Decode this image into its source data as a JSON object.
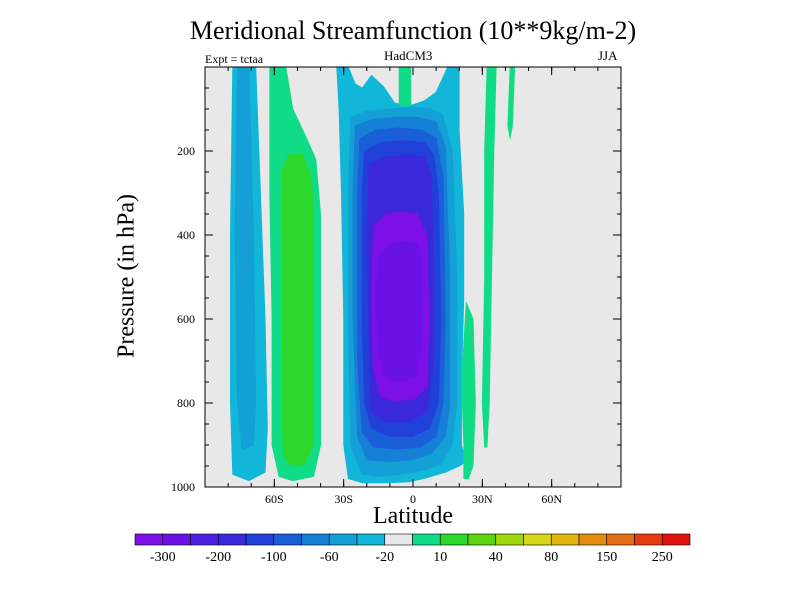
{
  "chart_data": {
    "type": "heatmap",
    "title": "Meridional Streamfunction (10**9kg/m-2)",
    "subtitle_left": "Expt = tctaa",
    "subtitle_center": "HadCM3",
    "subtitle_right": "JJA",
    "xlabel": "Latitude",
    "ylabel": "Pressure (in hPa)",
    "xlim": [
      -90,
      90
    ],
    "ylim": [
      1000,
      0
    ],
    "x_ticks": [
      {
        "value": -60,
        "label": "60S"
      },
      {
        "value": -30,
        "label": "30S"
      },
      {
        "value": 0,
        "label": "0"
      },
      {
        "value": 30,
        "label": "30N"
      },
      {
        "value": 60,
        "label": "60N"
      }
    ],
    "y_ticks": [
      {
        "value": 200,
        "label": "200"
      },
      {
        "value": 400,
        "label": "400"
      },
      {
        "value": 600,
        "label": "600"
      },
      {
        "value": 800,
        "label": "800"
      },
      {
        "value": 1000,
        "label": "1000"
      }
    ],
    "background_color": "#e8e8e8",
    "colorbar": {
      "colors": [
        "#7c10e6",
        "#6a12e6",
        "#4f1ee0",
        "#3a28da",
        "#2040d8",
        "#1a5ed8",
        "#1680d6",
        "#14a0d6",
        "#12b6d8",
        "#e8e8e8",
        "#10dc88",
        "#2cd82c",
        "#5cd410",
        "#a0d810",
        "#d8d418",
        "#e4b410",
        "#e48c10",
        "#e46c14",
        "#e43c10",
        "#e01010"
      ],
      "labels": [
        "-300",
        "-200",
        "-100",
        "-60",
        "-20",
        "10",
        "40",
        "80",
        "150",
        "250"
      ]
    },
    "contours": [
      {
        "name": "sh_neg_outer",
        "level": "-20 to 10",
        "color": "#12b6d8",
        "points": [
          [
            -78,
            0
          ],
          [
            -68,
            0
          ],
          [
            -66,
            300
          ],
          [
            -64,
            600
          ],
          [
            -63,
            860
          ],
          [
            -64,
            965
          ],
          [
            -71,
            985
          ],
          [
            -78,
            970
          ],
          [
            -79,
            800
          ],
          [
            -79,
            400
          ]
        ]
      },
      {
        "name": "sh_neg_inner",
        "level": "-60 to -20",
        "color": "#14a0d6",
        "points": [
          [
            -76,
            0
          ],
          [
            -71,
            0
          ],
          [
            -69,
            400
          ],
          [
            -68,
            800
          ],
          [
            -69,
            900
          ],
          [
            -74,
            910
          ],
          [
            -76,
            800
          ],
          [
            -77,
            400
          ]
        ]
      },
      {
        "name": "sh_pos_outer",
        "level": "10 to 40",
        "color": "#10dc88",
        "points": [
          [
            -62,
            0
          ],
          [
            -55,
            0
          ],
          [
            -52,
            100
          ],
          [
            -46,
            170
          ],
          [
            -42,
            220
          ],
          [
            -40,
            350
          ],
          [
            -40,
            900
          ],
          [
            -43,
            975
          ],
          [
            -52,
            985
          ],
          [
            -58,
            975
          ],
          [
            -61,
            900
          ],
          [
            -61,
            600
          ],
          [
            -62,
            300
          ]
        ]
      },
      {
        "name": "sh_pos_inner",
        "level": "40 to 80",
        "color": "#2cd82c",
        "points": [
          [
            -57,
            250
          ],
          [
            -54,
            210
          ],
          [
            -48,
            205
          ],
          [
            -44,
            260
          ],
          [
            -43,
            350
          ],
          [
            -43,
            900
          ],
          [
            -47,
            945
          ],
          [
            -52,
            950
          ],
          [
            -56,
            930
          ],
          [
            -57,
            800
          ],
          [
            -57,
            500
          ]
        ]
      },
      {
        "name": "nh_neg_outer",
        "level": "-20 to 10",
        "color": "#12b6d8",
        "points": [
          [
            -33,
            0
          ],
          [
            -28,
            0
          ],
          [
            -25,
            40
          ],
          [
            -22,
            50
          ],
          [
            -18,
            20
          ],
          [
            -13,
            45
          ],
          [
            -8,
            85
          ],
          [
            -5,
            90
          ],
          [
            0,
            90
          ],
          [
            5,
            80
          ],
          [
            10,
            60
          ],
          [
            15,
            0
          ],
          [
            20,
            0
          ],
          [
            20,
            150
          ],
          [
            22,
            350
          ],
          [
            22,
            550
          ],
          [
            21,
            750
          ],
          [
            21,
            900
          ],
          [
            23,
            940
          ],
          [
            20,
            950
          ],
          [
            14,
            965
          ],
          [
            6,
            978
          ],
          [
            -2,
            988
          ],
          [
            -12,
            990
          ],
          [
            -22,
            990
          ],
          [
            -28,
            980
          ],
          [
            -30,
            900
          ],
          [
            -30,
            600
          ],
          [
            -31,
            300
          ],
          [
            -32,
            100
          ]
        ]
      },
      {
        "name": "nh_neg_l2",
        "level": "-60 to -20",
        "color": "#14a0d6",
        "points": [
          [
            -27,
            120
          ],
          [
            -20,
            105
          ],
          [
            -10,
            100
          ],
          [
            0,
            95
          ],
          [
            8,
            100
          ],
          [
            13,
            115
          ],
          [
            17,
            200
          ],
          [
            19,
            500
          ],
          [
            19,
            800
          ],
          [
            17,
            900
          ],
          [
            12,
            945
          ],
          [
            5,
            960
          ],
          [
            -5,
            970
          ],
          [
            -15,
            975
          ],
          [
            -22,
            970
          ],
          [
            -27,
            900
          ],
          [
            -28,
            600
          ],
          [
            -28,
            300
          ]
        ]
      },
      {
        "name": "nh_neg_l3",
        "level": "-100 to -60",
        "color": "#1680d6",
        "points": [
          [
            -25,
            140
          ],
          [
            -18,
            125
          ],
          [
            -8,
            120
          ],
          [
            2,
            120
          ],
          [
            10,
            130
          ],
          [
            14,
            190
          ],
          [
            16,
            500
          ],
          [
            16,
            800
          ],
          [
            14,
            880
          ],
          [
            8,
            920
          ],
          [
            0,
            935
          ],
          [
            -10,
            940
          ],
          [
            -20,
            935
          ],
          [
            -24,
            880
          ],
          [
            -26,
            600
          ],
          [
            -26,
            300
          ]
        ]
      },
      {
        "name": "nh_neg_l4",
        "level": "-200 to -100",
        "color": "#1a5ed8",
        "points": [
          [
            -23,
            170
          ],
          [
            -16,
            150
          ],
          [
            -6,
            145
          ],
          [
            4,
            150
          ],
          [
            10,
            170
          ],
          [
            13,
            260
          ],
          [
            14,
            600
          ],
          [
            13,
            800
          ],
          [
            10,
            880
          ],
          [
            3,
            905
          ],
          [
            -7,
            910
          ],
          [
            -17,
            905
          ],
          [
            -22,
            870
          ],
          [
            -24,
            700
          ],
          [
            -24,
            300
          ]
        ]
      },
      {
        "name": "nh_neg_l5",
        "level": "-300 to -200",
        "color": "#2040d8",
        "points": [
          [
            -21,
            200
          ],
          [
            -14,
            180
          ],
          [
            -4,
            175
          ],
          [
            5,
            180
          ],
          [
            9,
            210
          ],
          [
            11,
            300
          ],
          [
            12,
            600
          ],
          [
            11,
            800
          ],
          [
            7,
            860
          ],
          [
            0,
            880
          ],
          [
            -10,
            880
          ],
          [
            -18,
            860
          ],
          [
            -21,
            800
          ],
          [
            -22,
            600
          ],
          [
            -22,
            300
          ]
        ]
      },
      {
        "name": "nh_neg_l6",
        "level": "-300 to -200",
        "color": "#3a28da",
        "points": [
          [
            -19,
            230
          ],
          [
            -12,
            215
          ],
          [
            -3,
            210
          ],
          [
            5,
            215
          ],
          [
            8,
            260
          ],
          [
            9,
            500
          ],
          [
            9,
            700
          ],
          [
            6,
            820
          ],
          [
            -2,
            845
          ],
          [
            -12,
            845
          ],
          [
            -18,
            820
          ],
          [
            -19,
            700
          ],
          [
            -20,
            400
          ]
        ]
      },
      {
        "name": "nh_neg_core",
        "level": "< -300",
        "color": "#7c10e6",
        "points": [
          [
            -17,
            380
          ],
          [
            -12,
            350
          ],
          [
            -5,
            345
          ],
          [
            2,
            350
          ],
          [
            6,
            400
          ],
          [
            7,
            600
          ],
          [
            6,
            760
          ],
          [
            1,
            790
          ],
          [
            -8,
            795
          ],
          [
            -14,
            785
          ],
          [
            -17,
            720
          ],
          [
            -18,
            550
          ]
        ]
      },
      {
        "name": "nh_neg_core2",
        "level": "< -300",
        "color": "#6a12e6",
        "points": [
          [
            -15,
            450
          ],
          [
            -10,
            420
          ],
          [
            -4,
            415
          ],
          [
            2,
            420
          ],
          [
            4,
            480
          ],
          [
            4,
            650
          ],
          [
            1,
            740
          ],
          [
            -6,
            750
          ],
          [
            -12,
            740
          ],
          [
            -15,
            680
          ],
          [
            -16,
            550
          ]
        ]
      },
      {
        "name": "nh_pos_top_1",
        "level": "10 to 40",
        "color": "#10dc88",
        "points": [
          [
            -6,
            0
          ],
          [
            -1,
            0
          ],
          [
            -1,
            90
          ],
          [
            -3,
            95
          ],
          [
            -6,
            90
          ]
        ]
      },
      {
        "name": "nh_pos_tall",
        "level": "10 to 40",
        "color": "#10dc88",
        "points": [
          [
            32,
            0
          ],
          [
            36,
            0
          ],
          [
            35,
            200
          ],
          [
            34,
            500
          ],
          [
            33,
            800
          ],
          [
            32,
            905
          ],
          [
            31,
            905
          ],
          [
            30,
            800
          ],
          [
            31,
            500
          ],
          [
            31,
            200
          ]
        ]
      },
      {
        "name": "nh_pos_thin",
        "level": "10 to 40",
        "color": "#10dc88",
        "points": [
          [
            42,
            0
          ],
          [
            44,
            0
          ],
          [
            43,
            140
          ],
          [
            42,
            170
          ],
          [
            41,
            140
          ]
        ]
      },
      {
        "name": "nh_pos_bottom",
        "level": "10 to 40",
        "color": "#10dc88",
        "points": [
          [
            23,
            560
          ],
          [
            26,
            600
          ],
          [
            27,
            800
          ],
          [
            26,
            950
          ],
          [
            24,
            980
          ],
          [
            22,
            980
          ],
          [
            22,
            900
          ],
          [
            21,
            750
          ]
        ]
      }
    ]
  }
}
